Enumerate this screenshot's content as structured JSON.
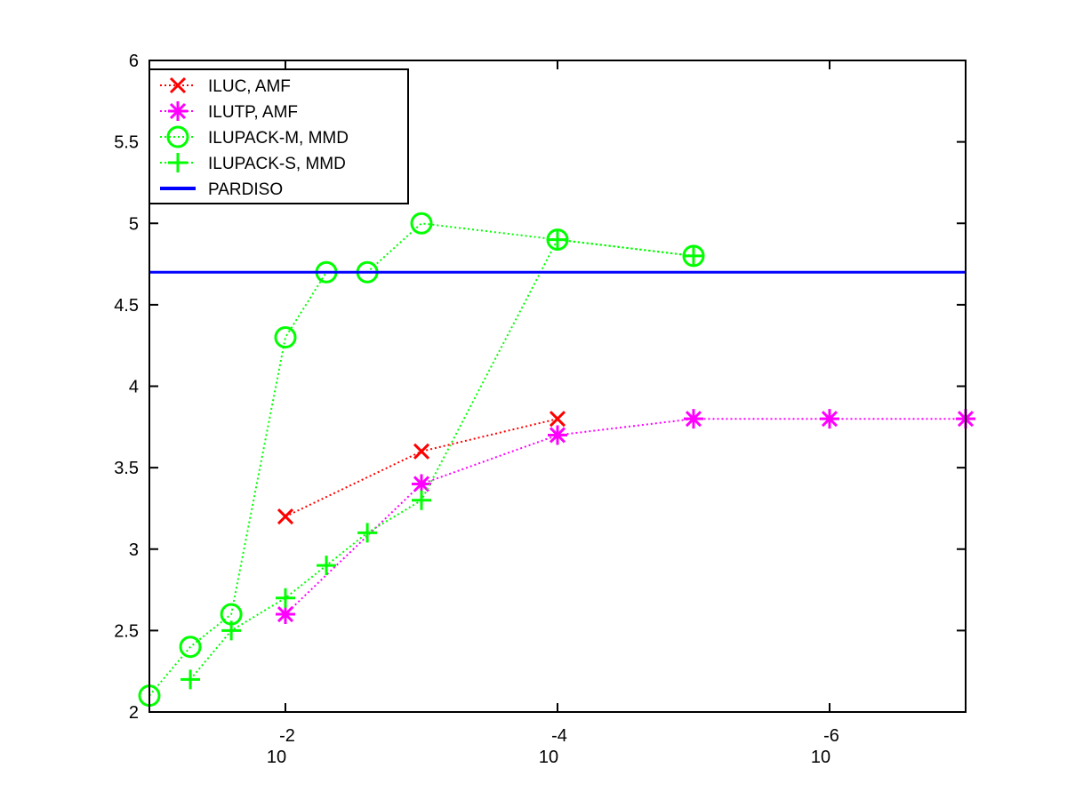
{
  "chart_data": {
    "type": "line",
    "x_scale": "log-reversed",
    "xlim": [
      0.1,
      1e-07
    ],
    "ylim": [
      2,
      6
    ],
    "x_ticks": [
      {
        "value": 0.01,
        "base": "10",
        "exp": "-2"
      },
      {
        "value": 0.0001,
        "base": "10",
        "exp": "-4"
      },
      {
        "value": 1e-06,
        "base": "10",
        "exp": "-6"
      }
    ],
    "y_ticks": [
      {
        "value": 2,
        "label": "2"
      },
      {
        "value": 2.5,
        "label": "2.5"
      },
      {
        "value": 3,
        "label": "3"
      },
      {
        "value": 3.5,
        "label": "3.5"
      },
      {
        "value": 4,
        "label": "4"
      },
      {
        "value": 4.5,
        "label": "4.5"
      },
      {
        "value": 5,
        "label": "5"
      },
      {
        "value": 5.5,
        "label": "5.5"
      },
      {
        "value": 6,
        "label": "6"
      }
    ],
    "grid": false,
    "legend_position": "top-left",
    "series": [
      {
        "name": "ILUC, AMF",
        "color": "#ff0000",
        "marker": "x",
        "line": "dotted",
        "x": [
          0.01,
          0.001,
          0.0001
        ],
        "y": [
          3.2,
          3.6,
          3.8
        ]
      },
      {
        "name": "ILUTP, AMF",
        "color": "#ff00ff",
        "marker": "star",
        "line": "dotted",
        "x": [
          0.01,
          0.001,
          0.0001,
          1e-05,
          1e-06,
          1e-07
        ],
        "y": [
          2.6,
          3.4,
          3.7,
          3.8,
          3.8,
          3.8
        ]
      },
      {
        "name": "ILUPACK-M, MMD",
        "color": "#00ff00",
        "marker": "circle",
        "line": "dotted",
        "x": [
          0.1,
          0.05,
          0.025,
          0.01,
          0.005,
          0.0025,
          0.001,
          0.0001,
          1e-05
        ],
        "y": [
          2.1,
          2.4,
          2.6,
          4.3,
          4.7,
          4.7,
          5.0,
          4.9,
          4.8
        ]
      },
      {
        "name": "ILUPACK-S, MMD",
        "color": "#00ff00",
        "marker": "plus",
        "line": "dotted",
        "x": [
          0.05,
          0.025,
          0.01,
          0.005,
          0.0025,
          0.001,
          0.0001,
          1e-05
        ],
        "y": [
          2.2,
          2.5,
          2.7,
          2.9,
          3.1,
          3.3,
          4.9,
          4.8
        ]
      },
      {
        "name": "PARDISO",
        "color": "#0000ff",
        "marker": "none",
        "line": "solid",
        "x": [
          0.1,
          1e-07
        ],
        "y": [
          4.7,
          4.7
        ]
      }
    ]
  }
}
